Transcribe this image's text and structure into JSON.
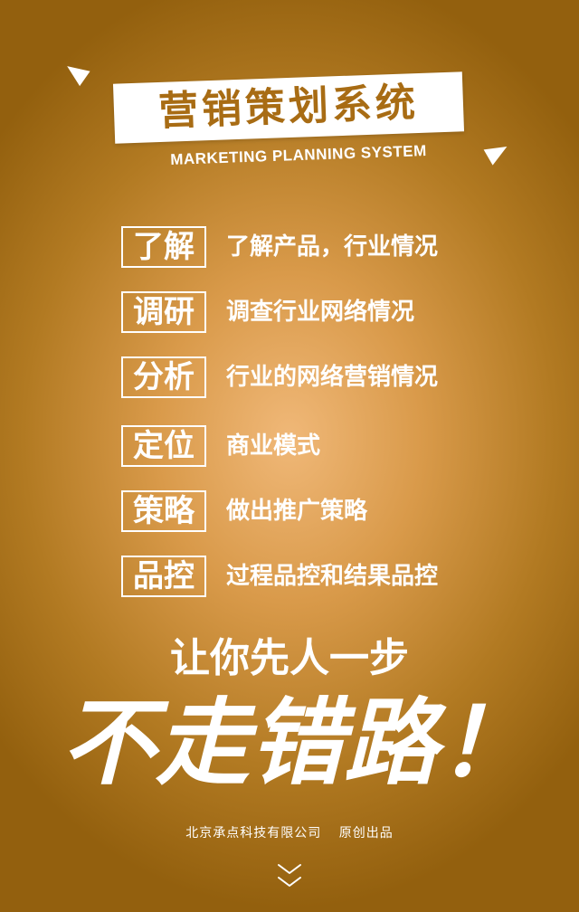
{
  "title": "营销策划系统",
  "subtitle": "MARKETING PLANNING SYSTEM",
  "items": [
    {
      "key": "了解",
      "desc": "了解产品，行业情况"
    },
    {
      "key": "调研",
      "desc": "调查行业网络情况"
    },
    {
      "key": "分析",
      "desc": "行业的网络营销情况"
    },
    {
      "key": "定位",
      "desc": "商业模式"
    },
    {
      "key": "策略",
      "desc": "做出推广策略"
    },
    {
      "key": "品控",
      "desc": "过程品控和结果品控"
    }
  ],
  "slogan": {
    "line1": "让你先人一步",
    "line2": "不走错路！"
  },
  "footer": {
    "company": "北京承点科技有限公司",
    "note": "原创出品"
  },
  "icons": {
    "decor_left": "arrow-pointer-icon",
    "decor_right": "arrow-pointer-icon",
    "scroll": "double-chevron-down-icon"
  },
  "colors": {
    "accent": "#a86c14",
    "text": "#ffffff"
  }
}
